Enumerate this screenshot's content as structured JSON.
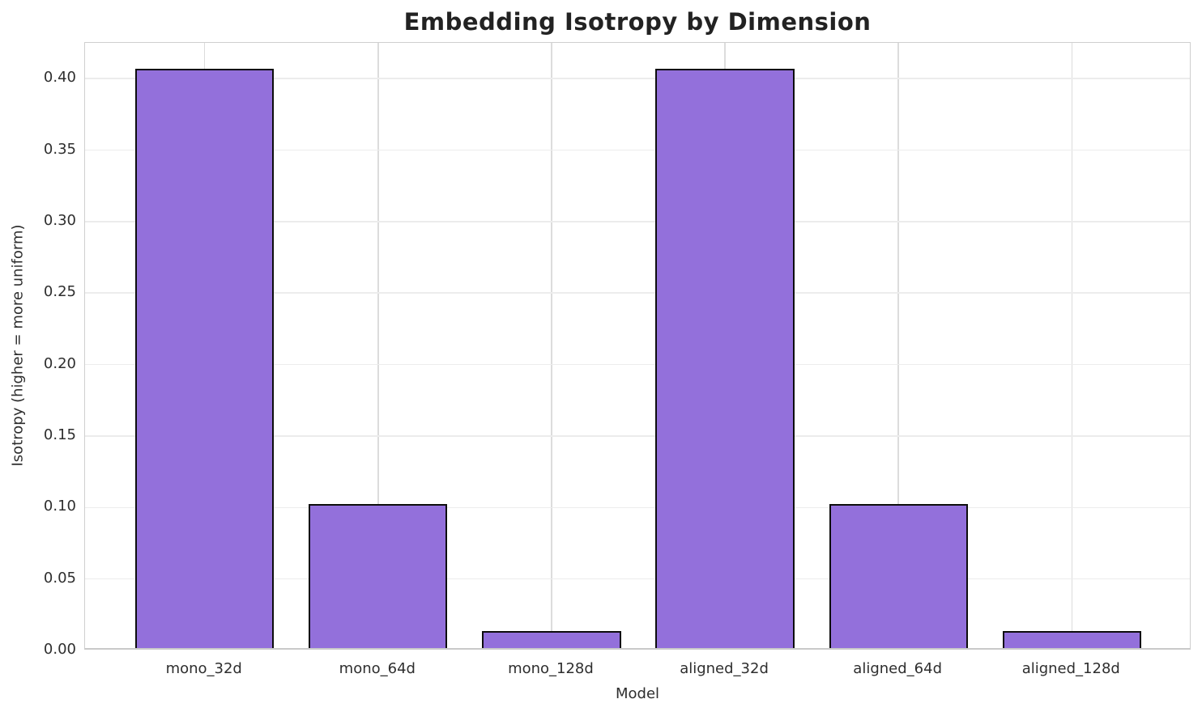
{
  "chart_data": {
    "type": "bar",
    "title": "Embedding Isotropy by Dimension",
    "categories": [
      "mono_32d",
      "mono_64d",
      "mono_128d",
      "aligned_32d",
      "aligned_64d",
      "aligned_128d"
    ],
    "values": [
      0.405,
      0.101,
      0.012,
      0.405,
      0.101,
      0.012
    ],
    "xlabel": "Model",
    "ylabel": "Isotropy (higher = more uniform)",
    "ylim": [
      0.0,
      0.425
    ],
    "yticks": [
      0.0,
      0.05,
      0.1,
      0.15,
      0.2,
      0.25,
      0.3,
      0.35,
      0.4
    ],
    "ytick_labels": [
      "0.00",
      "0.05",
      "0.10",
      "0.15",
      "0.20",
      "0.25",
      "0.30",
      "0.35",
      "0.40"
    ],
    "grid": true,
    "legend": null,
    "bar_fill_color": "#9370DB",
    "bar_edge_color": "#0d0d0d",
    "gridline_color_horizontal": "#ececec",
    "gridline_color_vertical": "#dcdcdc",
    "text_color": "#2e2e2e",
    "title_color": "#222222"
  }
}
